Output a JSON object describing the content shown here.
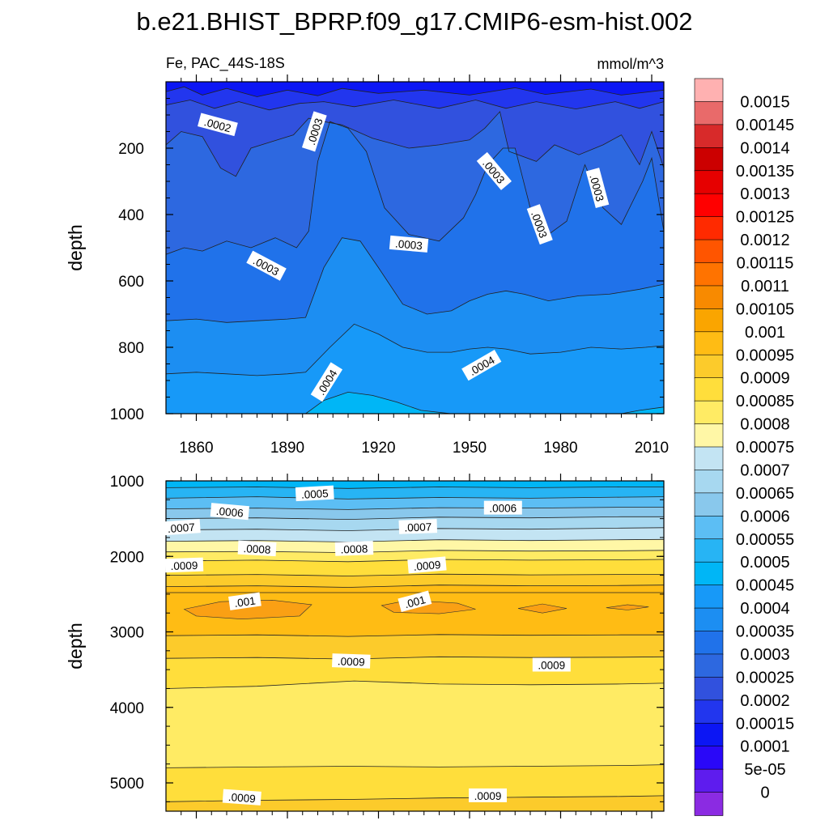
{
  "chart_data": {
    "type": "contour",
    "title": "b.e21.BHIST_BPRP.f09_g17.CMIP6-esm-hist.002",
    "variable": "Fe, PAC_44S-18S",
    "units": "mmol/m^3",
    "xlabel": "",
    "ylabel": "depth",
    "x_range": [
      1850,
      2014
    ],
    "x_ticks": [
      1860,
      1890,
      1920,
      1950,
      1980,
      2010
    ],
    "x_tick_labels": [
      "1860",
      "1890",
      "1920",
      "1950",
      "1980",
      "2010"
    ],
    "panels": [
      {
        "name": "upper",
        "y_range": [
          0,
          1000
        ],
        "y_ticks": [
          200,
          400,
          600,
          800,
          1000
        ],
        "y_tick_labels": [
          "200",
          "400",
          "600",
          "800",
          "1000"
        ],
        "ylabel": "depth",
        "contour_labels": [
          {
            "text": ".0002",
            "x": 1867,
            "y": 130,
            "rot": 15
          },
          {
            "text": ".0003",
            "x": 1899,
            "y": 150,
            "rot": -72
          },
          {
            "text": ".0003",
            "x": 1883,
            "y": 555,
            "rot": 28
          },
          {
            "text": ".0003",
            "x": 1930,
            "y": 490,
            "rot": 5
          },
          {
            "text": ".0003",
            "x": 1958,
            "y": 270,
            "rot": 50
          },
          {
            "text": ".0003",
            "x": 1973,
            "y": 430,
            "rot": 70
          },
          {
            "text": ".0003",
            "x": 1992,
            "y": 320,
            "rot": 75
          },
          {
            "text": ".0004",
            "x": 1903,
            "y": 905,
            "rot": -58
          },
          {
            "text": ".0004",
            "x": 1954,
            "y": 855,
            "rot": -30
          }
        ]
      },
      {
        "name": "lower",
        "y_range": [
          1000,
          5375
        ],
        "y_ticks": [
          1000,
          2000,
          3000,
          4000,
          5000
        ],
        "y_tick_labels": [
          "1000",
          "2000",
          "3000",
          "4000",
          "5000"
        ],
        "ylabel": "depth",
        "contour_labels": [
          {
            "text": ".0005",
            "x": 1899,
            "y": 1170,
            "rot": -3
          },
          {
            "text": ".0006",
            "x": 1871,
            "y": 1410,
            "rot": 5
          },
          {
            "text": ".0006",
            "x": 1961,
            "y": 1360,
            "rot": 0
          },
          {
            "text": ".0007",
            "x": 1855,
            "y": 1620,
            "rot": -4
          },
          {
            "text": ".0007",
            "x": 1933,
            "y": 1610,
            "rot": -2
          },
          {
            "text": ".0008",
            "x": 1880,
            "y": 1900,
            "rot": 3
          },
          {
            "text": ".0008",
            "x": 1912,
            "y": 1900,
            "rot": -2
          },
          {
            "text": ".0009",
            "x": 1856,
            "y": 2120,
            "rot": -2
          },
          {
            "text": ".0009",
            "x": 1936,
            "y": 2120,
            "rot": -5
          },
          {
            "text": ".001",
            "x": 1876,
            "y": 2600,
            "rot": -8
          },
          {
            "text": ".001",
            "x": 1932,
            "y": 2600,
            "rot": -15
          },
          {
            "text": ".0009",
            "x": 1911,
            "y": 3390,
            "rot": 2
          },
          {
            "text": ".0009",
            "x": 1977,
            "y": 3440,
            "rot": 0
          },
          {
            "text": ".0009",
            "x": 1875,
            "y": 5195,
            "rot": 4
          },
          {
            "text": ".0009",
            "x": 1956,
            "y": 5170,
            "rot": 0
          }
        ]
      }
    ],
    "colorbar": {
      "levels": [
        "0.0015",
        "0.00145",
        "0.0014",
        "0.00135",
        "0.0013",
        "0.00125",
        "0.0012",
        "0.00115",
        "0.0011",
        "0.00105",
        "0.001",
        "0.00095",
        "0.0009",
        "0.00085",
        "0.0008",
        "0.00075",
        "0.0007",
        "0.00065",
        "0.0006",
        "0.00055",
        "0.0005",
        "0.00045",
        "0.0004",
        "0.00035",
        "0.0003",
        "0.00025",
        "0.0002",
        "0.00015",
        "0.0001",
        "5e-05",
        "0"
      ],
      "colors": [
        "#FFB1B1",
        "#E96A6A",
        "#D82A2A",
        "#CC0000",
        "#E60000",
        "#FF0000",
        "#FF2A00",
        "#FF5500",
        "#FF7300",
        "#F88A00",
        "#FAA500",
        "#FFBC14",
        "#FCCB2B",
        "#FFDE3B",
        "#FFEB64",
        "#FFF7A6",
        "#C3E4F3",
        "#A7D8F0",
        "#89C8EC",
        "#5CBEF4",
        "#27B4F4",
        "#00B6F6",
        "#1799F8",
        "#1C8EF2",
        "#2072EA",
        "#2D68E0",
        "#3151DE",
        "#2236EE",
        "#0C16F4",
        "#2A08F8",
        "#5E1CEE",
        "#8B2BE2"
      ]
    }
  }
}
